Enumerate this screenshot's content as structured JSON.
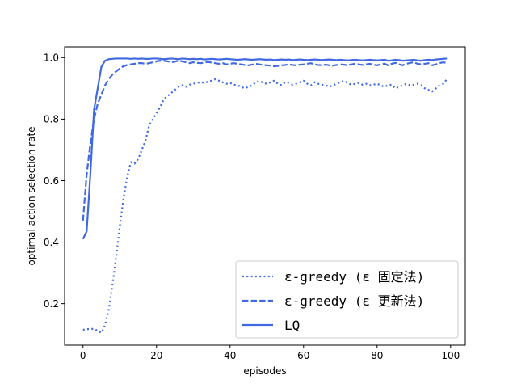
{
  "chart_data": {
    "type": "line",
    "xlabel": "episodes",
    "ylabel": "optimal action selection rate",
    "xlim": [
      -5,
      104
    ],
    "ylim": [
      0.065,
      1.035
    ],
    "xticks": [
      0,
      20,
      40,
      60,
      80,
      100
    ],
    "yticks": [
      0.2,
      0.4,
      0.6,
      0.8,
      1.0
    ],
    "xtick_labels": [
      "0",
      "20",
      "40",
      "60",
      "80",
      "100"
    ],
    "ytick_labels": [
      "0.2",
      "0.4",
      "0.6",
      "0.8",
      "1.0"
    ],
    "grid": false,
    "legend_position": "lower-right",
    "color": "#4169e1",
    "series": [
      {
        "name": "ε-greedy (ε 固定法)",
        "style": "dotted",
        "x": [
          0,
          1,
          2,
          3,
          4,
          5,
          6,
          7,
          8,
          9,
          10,
          11,
          12,
          13,
          14,
          15,
          16,
          17,
          18,
          19,
          20,
          21,
          22,
          23,
          24,
          25,
          26,
          27,
          28,
          29,
          30,
          31,
          32,
          33,
          34,
          35,
          36,
          37,
          38,
          39,
          40,
          41,
          42,
          43,
          44,
          45,
          46,
          47,
          48,
          49,
          50,
          51,
          52,
          53,
          54,
          55,
          56,
          57,
          58,
          59,
          60,
          61,
          62,
          63,
          64,
          65,
          66,
          67,
          68,
          69,
          70,
          71,
          72,
          73,
          74,
          75,
          76,
          77,
          78,
          79,
          80,
          81,
          82,
          83,
          84,
          85,
          86,
          87,
          88,
          89,
          90,
          91,
          92,
          93,
          94,
          95,
          96,
          97,
          98,
          99
        ],
        "values": [
          0.115,
          0.117,
          0.118,
          0.118,
          0.112,
          0.105,
          0.13,
          0.18,
          0.26,
          0.35,
          0.45,
          0.54,
          0.61,
          0.66,
          0.655,
          0.67,
          0.7,
          0.73,
          0.78,
          0.8,
          0.82,
          0.84,
          0.865,
          0.875,
          0.885,
          0.895,
          0.905,
          0.91,
          0.905,
          0.912,
          0.915,
          0.918,
          0.92,
          0.918,
          0.922,
          0.925,
          0.93,
          0.925,
          0.92,
          0.915,
          0.918,
          0.912,
          0.91,
          0.905,
          0.9,
          0.905,
          0.91,
          0.92,
          0.925,
          0.918,
          0.915,
          0.92,
          0.925,
          0.915,
          0.91,
          0.92,
          0.918,
          0.912,
          0.915,
          0.92,
          0.925,
          0.915,
          0.91,
          0.92,
          0.915,
          0.912,
          0.91,
          0.905,
          0.91,
          0.915,
          0.92,
          0.925,
          0.918,
          0.912,
          0.915,
          0.918,
          0.912,
          0.915,
          0.91,
          0.912,
          0.915,
          0.91,
          0.905,
          0.91,
          0.912,
          0.9,
          0.905,
          0.91,
          0.915,
          0.91,
          0.912,
          0.915,
          0.91,
          0.9,
          0.895,
          0.89,
          0.9,
          0.91,
          0.915,
          0.93
        ]
      },
      {
        "name": "ε-greedy (ε 更新法)",
        "style": "dashed",
        "x": [
          0,
          1,
          2,
          3,
          4,
          5,
          6,
          7,
          8,
          9,
          10,
          11,
          12,
          13,
          14,
          15,
          16,
          17,
          18,
          19,
          20,
          21,
          22,
          23,
          24,
          25,
          26,
          27,
          28,
          29,
          30,
          31,
          32,
          33,
          34,
          35,
          36,
          37,
          38,
          39,
          40,
          41,
          42,
          43,
          44,
          45,
          46,
          47,
          48,
          49,
          50,
          51,
          52,
          53,
          54,
          55,
          56,
          57,
          58,
          59,
          60,
          61,
          62,
          63,
          64,
          65,
          66,
          67,
          68,
          69,
          70,
          71,
          72,
          73,
          74,
          75,
          76,
          77,
          78,
          79,
          80,
          81,
          82,
          83,
          84,
          85,
          86,
          87,
          88,
          89,
          90,
          91,
          92,
          93,
          94,
          95,
          96,
          97,
          98,
          99
        ],
        "values": [
          0.47,
          0.62,
          0.72,
          0.8,
          0.85,
          0.88,
          0.91,
          0.93,
          0.945,
          0.955,
          0.965,
          0.972,
          0.976,
          0.978,
          0.98,
          0.982,
          0.982,
          0.98,
          0.982,
          0.985,
          0.988,
          0.99,
          0.99,
          0.988,
          0.985,
          0.987,
          0.99,
          0.988,
          0.985,
          0.982,
          0.985,
          0.983,
          0.982,
          0.984,
          0.986,
          0.984,
          0.982,
          0.98,
          0.982,
          0.978,
          0.98,
          0.982,
          0.98,
          0.978,
          0.976,
          0.975,
          0.977,
          0.98,
          0.978,
          0.976,
          0.975,
          0.974,
          0.972,
          0.973,
          0.975,
          0.976,
          0.978,
          0.976,
          0.975,
          0.977,
          0.978,
          0.98,
          0.982,
          0.978,
          0.976,
          0.975,
          0.977,
          0.975,
          0.974,
          0.976,
          0.978,
          0.977,
          0.975,
          0.978,
          0.98,
          0.978,
          0.976,
          0.978,
          0.98,
          0.977,
          0.975,
          0.978,
          0.98,
          0.975,
          0.98,
          0.983,
          0.978,
          0.975,
          0.98,
          0.983,
          0.985,
          0.98,
          0.978,
          0.98,
          0.982,
          0.975,
          0.978,
          0.982,
          0.985,
          0.982
        ]
      },
      {
        "name": "LQ",
        "style": "solid",
        "x": [
          0,
          1,
          2,
          3,
          4,
          5,
          6,
          7,
          8,
          9,
          10,
          11,
          12,
          13,
          14,
          15,
          16,
          17,
          18,
          19,
          20,
          21,
          22,
          23,
          24,
          25,
          26,
          27,
          28,
          29,
          30,
          31,
          32,
          33,
          34,
          35,
          36,
          37,
          38,
          39,
          40,
          41,
          42,
          43,
          44,
          45,
          46,
          47,
          48,
          49,
          50,
          51,
          52,
          53,
          54,
          55,
          56,
          57,
          58,
          59,
          60,
          61,
          62,
          63,
          64,
          65,
          66,
          67,
          68,
          69,
          70,
          71,
          72,
          73,
          74,
          75,
          76,
          77,
          78,
          79,
          80,
          81,
          82,
          83,
          84,
          85,
          86,
          87,
          88,
          89,
          90,
          91,
          92,
          93,
          94,
          95,
          96,
          97,
          98,
          99
        ],
        "values": [
          0.41,
          0.435,
          0.62,
          0.83,
          0.9,
          0.97,
          0.99,
          0.995,
          0.996,
          0.997,
          0.997,
          0.997,
          0.997,
          0.996,
          0.997,
          0.996,
          0.997,
          0.996,
          0.996,
          0.997,
          0.997,
          0.996,
          0.995,
          0.996,
          0.997,
          0.996,
          0.995,
          0.997,
          0.996,
          0.995,
          0.996,
          0.995,
          0.996,
          0.994,
          0.995,
          0.996,
          0.995,
          0.994,
          0.995,
          0.996,
          0.995,
          0.994,
          0.993,
          0.994,
          0.995,
          0.994,
          0.993,
          0.994,
          0.995,
          0.994,
          0.993,
          0.994,
          0.992,
          0.993,
          0.994,
          0.993,
          0.994,
          0.992,
          0.993,
          0.994,
          0.993,
          0.992,
          0.993,
          0.994,
          0.993,
          0.992,
          0.993,
          0.994,
          0.993,
          0.992,
          0.993,
          0.992,
          0.991,
          0.992,
          0.993,
          0.992,
          0.991,
          0.992,
          0.993,
          0.992,
          0.991,
          0.992,
          0.993,
          0.99,
          0.991,
          0.993,
          0.992,
          0.99,
          0.991,
          0.992,
          0.993,
          0.991,
          0.99,
          0.992,
          0.993,
          0.992,
          0.994,
          0.995,
          0.996,
          0.997
        ]
      }
    ]
  }
}
